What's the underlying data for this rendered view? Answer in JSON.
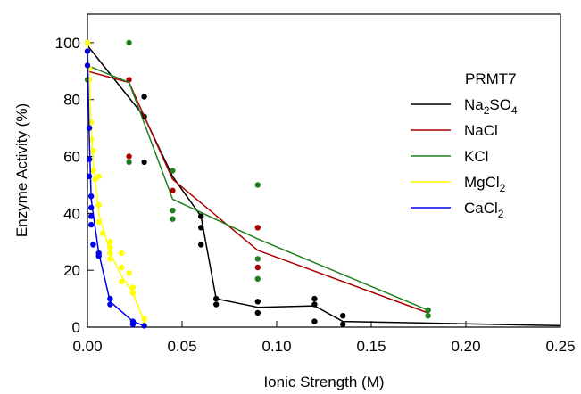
{
  "chart_data": {
    "type": "scatter",
    "annotation": "PRMT7",
    "xlabel": "Ionic Strength (M)",
    "ylabel": "Enzyme Activity (%)",
    "xlim": [
      0,
      0.25
    ],
    "ylim": [
      0,
      110
    ],
    "x_ticks": [
      "0.00",
      "0.05",
      "0.10",
      "0.15",
      "0.20",
      "0.25"
    ],
    "y_ticks": [
      "0",
      "20",
      "40",
      "60",
      "80",
      "100"
    ],
    "grid": false,
    "legend_position": "right",
    "series": [
      {
        "name": "Na2SO4",
        "legend_main": "Na",
        "legend_sub": "2",
        "legend_main2": "SO",
        "legend_sub2": "4",
        "color": "#000000",
        "line": [
          [
            0,
            99
          ],
          [
            0.03,
            74
          ],
          [
            0.045,
            53
          ],
          [
            0.06,
            39
          ],
          [
            0.068,
            10
          ],
          [
            0.09,
            7
          ],
          [
            0.12,
            7.5
          ],
          [
            0.135,
            2
          ],
          [
            0.25,
            0.5
          ]
        ],
        "points": [
          [
            0.03,
            81
          ],
          [
            0.03,
            74
          ],
          [
            0.03,
            58
          ],
          [
            0.06,
            39
          ],
          [
            0.06,
            35
          ],
          [
            0.06,
            29
          ],
          [
            0.068,
            10
          ],
          [
            0.068,
            8
          ],
          [
            0.09,
            9
          ],
          [
            0.09,
            5
          ],
          [
            0.12,
            10
          ],
          [
            0.12,
            8
          ],
          [
            0.12,
            2
          ],
          [
            0.135,
            4
          ],
          [
            0.135,
            1
          ]
        ]
      },
      {
        "name": "NaCl",
        "legend_main": "NaCl",
        "color": "#aa0000",
        "line": [
          [
            0,
            90
          ],
          [
            0.022,
            86
          ],
          [
            0.045,
            52
          ],
          [
            0.09,
            27
          ],
          [
            0.18,
            5
          ]
        ],
        "points": [
          [
            0.022,
            87
          ],
          [
            0.022,
            60
          ],
          [
            0.045,
            48
          ],
          [
            0.09,
            35
          ],
          [
            0.09,
            21
          ],
          [
            0.18,
            6
          ]
        ]
      },
      {
        "name": "KCl",
        "legend_main": "KCl",
        "color": "#208020",
        "line": [
          [
            0,
            92
          ],
          [
            0.022,
            86
          ],
          [
            0.045,
            45
          ],
          [
            0.09,
            31
          ],
          [
            0.18,
            6
          ]
        ],
        "points": [
          [
            0,
            87
          ],
          [
            0.022,
            100
          ],
          [
            0.022,
            58
          ],
          [
            0.045,
            55
          ],
          [
            0.045,
            41
          ],
          [
            0.045,
            38
          ],
          [
            0.09,
            50
          ],
          [
            0.09,
            24
          ],
          [
            0.09,
            17
          ],
          [
            0.18,
            6
          ],
          [
            0.18,
            4
          ]
        ]
      },
      {
        "name": "MgCl2",
        "legend_main": "MgCl",
        "legend_sub": "2",
        "color": "#ffff00",
        "line": [
          [
            0,
            100
          ],
          [
            0.001,
            88
          ],
          [
            0.002,
            70
          ],
          [
            0.003,
            58
          ],
          [
            0.006,
            40
          ],
          [
            0.012,
            26
          ],
          [
            0.018,
            18
          ],
          [
            0.024,
            12
          ],
          [
            0.03,
            2
          ]
        ],
        "points": [
          [
            0,
            100
          ],
          [
            0.001,
            91
          ],
          [
            0.001,
            87
          ],
          [
            0.002,
            72
          ],
          [
            0.002,
            66
          ],
          [
            0.003,
            62
          ],
          [
            0.003,
            55
          ],
          [
            0.004,
            52
          ],
          [
            0.006,
            53
          ],
          [
            0.006,
            43
          ],
          [
            0.006,
            37
          ],
          [
            0.008,
            33
          ],
          [
            0.012,
            30
          ],
          [
            0.012,
            28
          ],
          [
            0.012,
            26
          ],
          [
            0.012,
            24
          ],
          [
            0.018,
            26
          ],
          [
            0.018,
            21
          ],
          [
            0.018,
            16
          ],
          [
            0.022,
            19
          ],
          [
            0.024,
            14
          ],
          [
            0.024,
            12
          ],
          [
            0.03,
            3
          ],
          [
            0.03,
            1
          ]
        ]
      },
      {
        "name": "CaCl2",
        "legend_main": "CaCl",
        "legend_sub": "2",
        "color": "#0000ee",
        "line": [
          [
            0,
            97
          ],
          [
            0.001,
            66
          ],
          [
            0.002,
            45
          ],
          [
            0.003,
            40
          ],
          [
            0.006,
            26
          ],
          [
            0.012,
            9
          ],
          [
            0.024,
            2
          ],
          [
            0.03,
            0.5
          ]
        ],
        "points": [
          [
            0,
            97
          ],
          [
            0,
            92
          ],
          [
            0.001,
            70
          ],
          [
            0.001,
            59
          ],
          [
            0.001,
            53
          ],
          [
            0.002,
            46
          ],
          [
            0.002,
            42
          ],
          [
            0.002,
            39
          ],
          [
            0.002,
            36
          ],
          [
            0.003,
            29
          ],
          [
            0.006,
            26
          ],
          [
            0.006,
            25
          ],
          [
            0.012,
            10
          ],
          [
            0.012,
            8
          ],
          [
            0.024,
            2
          ],
          [
            0.024,
            1
          ],
          [
            0.03,
            0.5
          ]
        ]
      }
    ]
  }
}
